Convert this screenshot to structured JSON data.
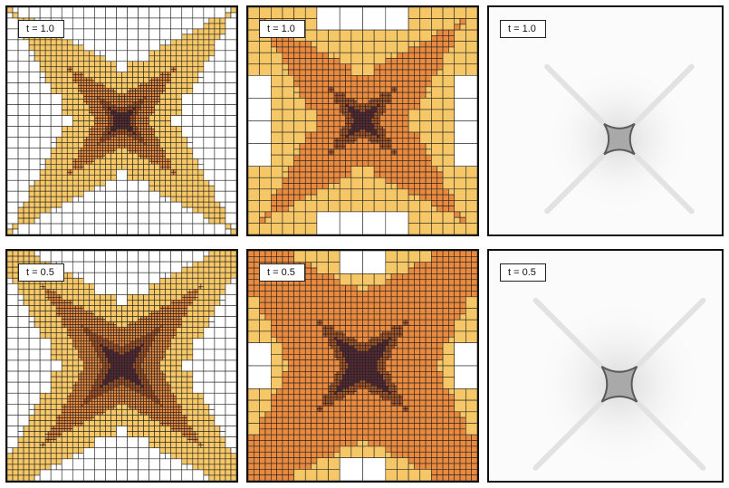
{
  "figure": {
    "rows": [
      {
        "label": "t = 1.0"
      },
      {
        "label": "t = 0.5"
      }
    ],
    "columns": [
      {
        "kind": "refinement-grid-coarse"
      },
      {
        "kind": "refinement-grid-fine"
      },
      {
        "kind": "density-map"
      }
    ]
  },
  "colors": {
    "border": "#111111",
    "grid_line": "#222222",
    "level_0": "#ffffff",
    "level_1": "#f6c766",
    "level_2": "#e98a3f",
    "level_3": "#b05a2a",
    "level_4": "#5a2a35",
    "density_dark": "#5a5a5a"
  }
}
